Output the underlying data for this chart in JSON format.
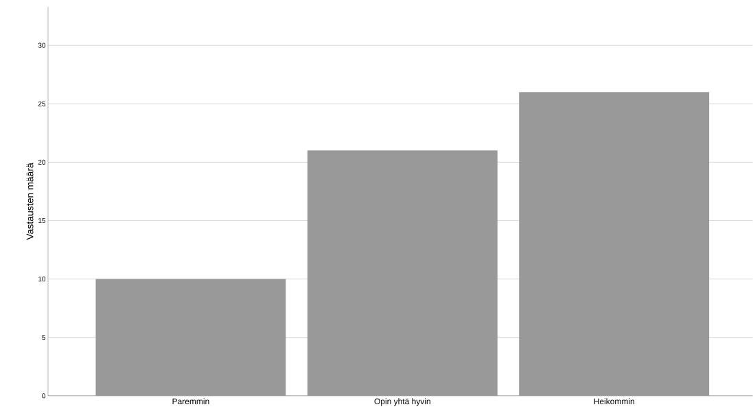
{
  "chart_data": {
    "type": "bar",
    "ylabel": "Vastausten määrä",
    "categories": [
      "Paremmin",
      "Opin yhtä hyvin",
      "Heikommin"
    ],
    "values": [
      10,
      21,
      26
    ],
    "color": "#999999",
    "ylim": [
      0,
      33.3
    ],
    "yticks": [
      0,
      5,
      10,
      15,
      20,
      25,
      30
    ],
    "grid": "y"
  }
}
